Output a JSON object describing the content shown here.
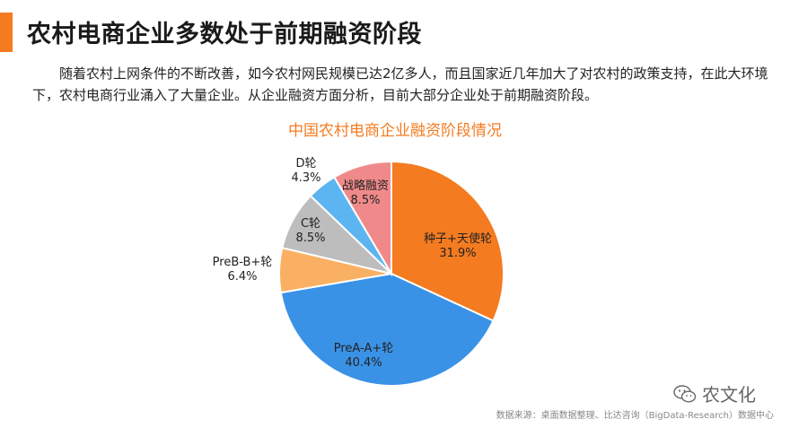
{
  "title": "农村电商企业多数处于前期融资阶段",
  "intro": "随着农村上网条件的不断改善，如今农村网民规模已达2亿多人，而且国家近几年加大了对农村的政策支持，在此大环境下，农村电商行业涌入了大量企业。从企业融资方面分析，目前大部分企业处于前期融资阶段。",
  "chart_data": {
    "type": "pie",
    "title": "中国农村电商企业融资阶段情况",
    "slices": [
      {
        "label": "种子+天使轮",
        "value": 31.9,
        "pct": "31.9%",
        "color": "#f47b20"
      },
      {
        "label": "PreA-A+轮",
        "value": 40.4,
        "pct": "40.4%",
        "color": "#3a92e6"
      },
      {
        "label": "PreB-B+轮",
        "value": 6.4,
        "pct": "6.4%",
        "color": "#f9b063"
      },
      {
        "label": "C轮",
        "value": 8.5,
        "pct": "8.5%",
        "color": "#bdbdbd"
      },
      {
        "label": "D轮",
        "value": 4.3,
        "pct": "4.3%",
        "color": "#5cb4f0"
      },
      {
        "label": "战略融资",
        "value": 8.5,
        "pct": "8.5%",
        "color": "#f08a8a"
      }
    ]
  },
  "source": "数据来源：桌面数据整理、比达咨询（BigData-Research）数据中心",
  "watermark": "农文化",
  "watermark_icon": "wechat-icon"
}
